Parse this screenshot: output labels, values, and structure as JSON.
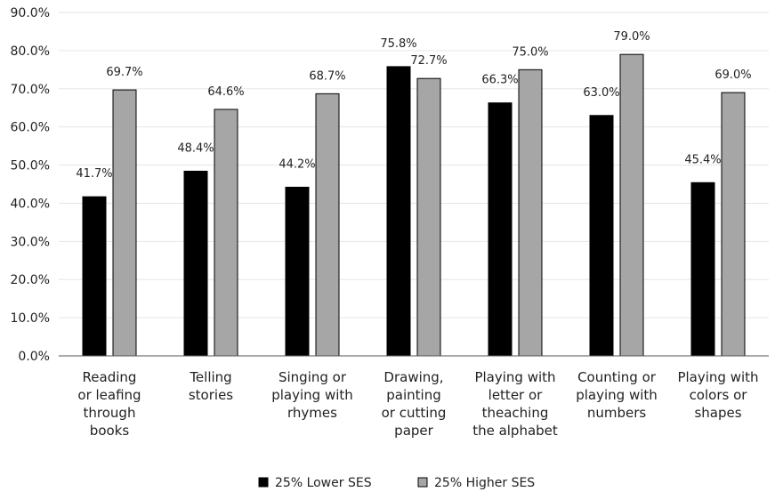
{
  "chart_data": {
    "type": "bar",
    "categories": [
      [
        "Reading",
        "or leafing",
        "through",
        "books"
      ],
      [
        "Telling",
        "stories"
      ],
      [
        "Singing or",
        "playing with",
        "rhymes"
      ],
      [
        "Drawing,",
        "painting",
        "or cutting",
        "paper"
      ],
      [
        "Playing with",
        "letter or",
        "theaching",
        "the alphabet"
      ],
      [
        "Counting or",
        "playing with",
        "numbers"
      ],
      [
        "Playing with",
        "colors or",
        "shapes"
      ]
    ],
    "series": [
      {
        "name": "25% Lower SES",
        "color": "#000000",
        "values": [
          41.7,
          48.4,
          44.2,
          75.8,
          66.3,
          63.0,
          45.4
        ],
        "labels": [
          "41.7%",
          "48.4%",
          "44.2%",
          "75.8%",
          "66.3%",
          "63.0%",
          "45.4%"
        ]
      },
      {
        "name": "25% Higher SES",
        "color": "#a6a6a6",
        "values": [
          69.7,
          64.6,
          68.7,
          72.7,
          75.0,
          79.0,
          69.0
        ],
        "labels": [
          "69.7%",
          "64.6%",
          "68.7%",
          "72.7%",
          "75.0%",
          "79.0%",
          "69.0%"
        ]
      }
    ],
    "ylim": [
      0,
      90
    ],
    "yticks": [
      "0.0%",
      "10.0%",
      "20.0%",
      "30.0%",
      "40.0%",
      "50.0%",
      "60.0%",
      "70.0%",
      "80.0%",
      "90.0%"
    ],
    "grid": true,
    "legend": "bottom"
  }
}
